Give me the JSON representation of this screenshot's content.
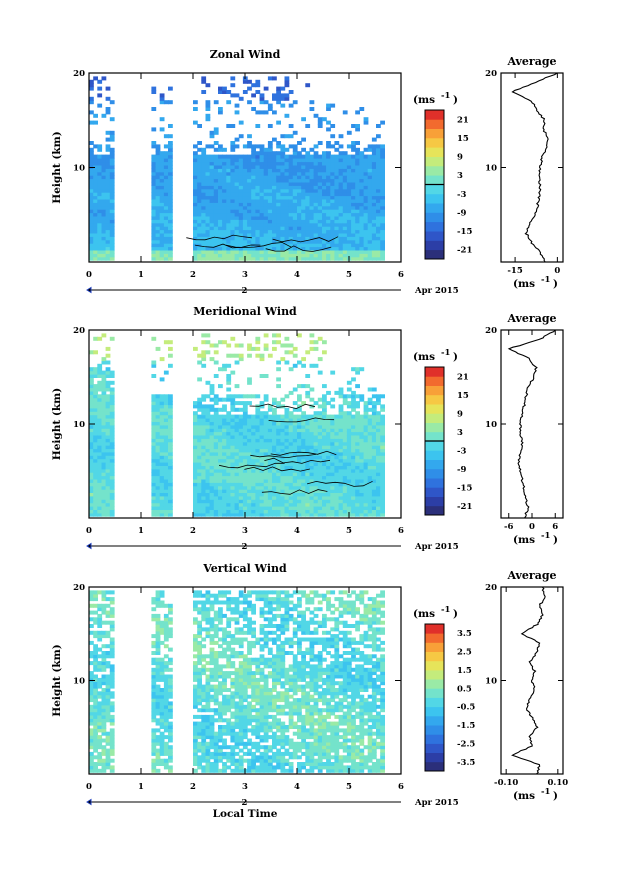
{
  "chart_data": [
    {
      "type": "heatmap",
      "title": "Zonal Wind",
      "ylabel": "Height (km)",
      "ylim": [
        0,
        20
      ],
      "yticks": [
        "20",
        "10"
      ],
      "xticks": [
        "0",
        "1",
        "2",
        "3",
        "4",
        "5",
        "6"
      ],
      "xlim": [
        0,
        6
      ],
      "date_day": "2",
      "date_label": "Apr 2015",
      "colorbar": {
        "unit": "(ms",
        "unit_exp": "-1",
        "unit_close": ")",
        "ticks": [
          "21",
          "15",
          "9",
          "3",
          "-3",
          "-9",
          "-15",
          "-21"
        ],
        "range": [
          -24,
          24
        ],
        "zero_line": true
      },
      "data_gaps_hours": [
        [
          0.5,
          1.15
        ],
        [
          1.65,
          1.95
        ]
      ],
      "profile": {
        "title": "Average",
        "xticks": [
          "-15",
          "0"
        ],
        "xlim": [
          -20,
          2
        ],
        "xlabel": "(ms",
        "xlabel_exp": "-1",
        "xlabel_close": ")",
        "heights_km": [
          0,
          1,
          2,
          3,
          4,
          5,
          6,
          7,
          8,
          9,
          10,
          11,
          12,
          13,
          14,
          15,
          16,
          17,
          18,
          19,
          20
        ],
        "values": [
          -4,
          -6,
          -9,
          -11,
          -10,
          -8,
          -7,
          -6.5,
          -6,
          -6.5,
          -6,
          -5.5,
          -4,
          -3,
          -5,
          -4.5,
          -7,
          -9,
          -16,
          -8,
          0
        ]
      }
    },
    {
      "type": "heatmap",
      "title": "Meridional Wind",
      "ylabel": "Height (km)",
      "ylim": [
        0,
        20
      ],
      "yticks": [
        "20",
        "10"
      ],
      "xticks": [
        "0",
        "1",
        "2",
        "3",
        "4",
        "5",
        "6"
      ],
      "xlim": [
        0,
        6
      ],
      "date_day": "2",
      "date_label": "Apr 2015",
      "colorbar": {
        "unit": "(ms",
        "unit_exp": "-1",
        "unit_close": ")",
        "ticks": [
          "21",
          "15",
          "9",
          "3",
          "-3",
          "-9",
          "-15",
          "-21"
        ],
        "range": [
          -24,
          24
        ],
        "zero_line": true
      },
      "data_gaps_hours": [
        [
          0.5,
          1.15
        ],
        [
          1.65,
          1.95
        ]
      ],
      "profile": {
        "title": "Average",
        "xticks": [
          "-6",
          "0",
          "6"
        ],
        "xlim": [
          -8,
          8
        ],
        "xlabel": "(ms",
        "xlabel_exp": "-1",
        "xlabel_close": ")",
        "heights_km": [
          0,
          1,
          2,
          3,
          4,
          5,
          6,
          7,
          8,
          9,
          10,
          11,
          12,
          13,
          14,
          15,
          16,
          17,
          18,
          19,
          20
        ],
        "values": [
          -2,
          -1,
          -1.5,
          -2,
          -2.5,
          -3,
          -3.5,
          -3,
          -2.5,
          -3,
          -3,
          -2.5,
          -2,
          -1.5,
          -1,
          0.5,
          1,
          -1,
          -6,
          2,
          6
        ]
      }
    },
    {
      "type": "heatmap",
      "title": "Vertical Wind",
      "ylabel": "Height (km)",
      "ylim": [
        0,
        20
      ],
      "yticks": [
        "20",
        "10"
      ],
      "xticks": [
        "0",
        "1",
        "2",
        "3",
        "4",
        "5",
        "6"
      ],
      "xlim": [
        0,
        6
      ],
      "date_day": "2",
      "date_label": "Apr 2015",
      "xlabel": "Local Time",
      "colorbar": {
        "unit": "(ms",
        "unit_exp": "-1",
        "unit_close": ")",
        "ticks": [
          "3.5",
          "2.5",
          "1.5",
          "0.5",
          "-0.5",
          "-1.5",
          "-2.5",
          "-3.5"
        ],
        "range": [
          -4,
          4
        ],
        "zero_line": false
      },
      "data_gaps_hours": [
        [
          0.5,
          1.15
        ],
        [
          1.65,
          1.95
        ]
      ],
      "profile": {
        "title": "Average",
        "xticks": [
          "-0.10",
          "0.10"
        ],
        "xlim": [
          -0.12,
          0.12
        ],
        "xlabel": "(ms",
        "xlabel_exp": "-1",
        "xlabel_close": ")",
        "heights_km": [
          0,
          1,
          2,
          3,
          4,
          5,
          6,
          7,
          8,
          9,
          10,
          11,
          12,
          13,
          14,
          15,
          16,
          17,
          18,
          19,
          20
        ],
        "values": [
          0.02,
          0.03,
          -0.08,
          0.0,
          -0.01,
          0.02,
          0.0,
          -0.02,
          -0.01,
          0.01,
          0.0,
          0.01,
          -0.01,
          0.02,
          0.03,
          -0.04,
          0.02,
          0.04,
          0.03,
          0.05,
          0.04
        ]
      }
    }
  ]
}
